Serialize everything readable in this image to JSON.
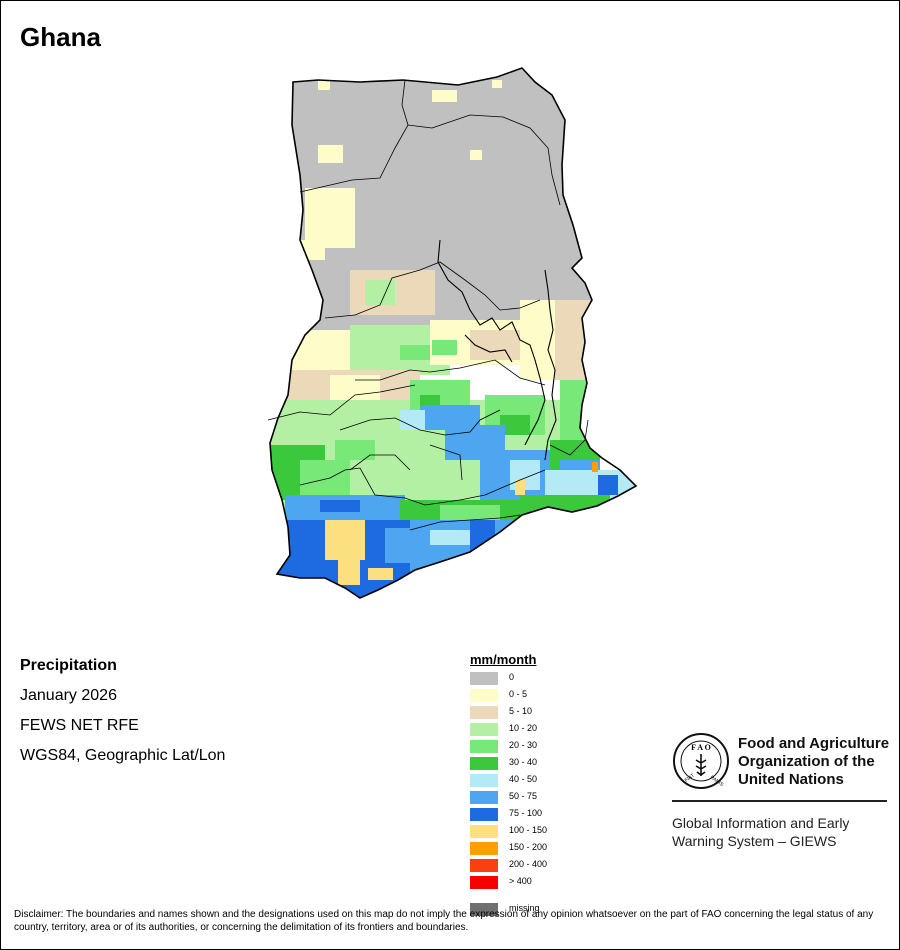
{
  "map": {
    "country": "Ghana"
  },
  "info": {
    "variable": "Precipitation",
    "period": "January 2026",
    "source": "FEWS NET RFE",
    "projection": "WGS84, Geographic Lat/Lon"
  },
  "legend": {
    "unit": "mm/month",
    "classes": [
      {
        "label": "0",
        "color": "#c0c0c0"
      },
      {
        "label": "0 - 5",
        "color": "#fefcc8"
      },
      {
        "label": "5 - 10",
        "color": "#ecd9b9"
      },
      {
        "label": "10 - 20",
        "color": "#b4f0a4"
      },
      {
        "label": "20 - 30",
        "color": "#78e878"
      },
      {
        "label": "30 - 40",
        "color": "#3cc83c"
      },
      {
        "label": "40 - 50",
        "color": "#b4eaf5"
      },
      {
        "label": "50 - 75",
        "color": "#4ea6f0"
      },
      {
        "label": "75 - 100",
        "color": "#1e6ae0"
      },
      {
        "label": "100 - 150",
        "color": "#fce080"
      },
      {
        "label": "150 - 200",
        "color": "#fba000"
      },
      {
        "label": "200 - 400",
        "color": "#f84010"
      },
      {
        "label": "> 400",
        "color": "#f80000"
      },
      {
        "label": "missing",
        "color": "#707070"
      }
    ]
  },
  "branding": {
    "org_line1": "Food and Agriculture",
    "org_line2": "Organization of the",
    "org_line3": "United Nations",
    "system_line1": "Global Information and Early",
    "system_line2": "Warning System – GIEWS",
    "logo_text": "FAO FIAT PANIS"
  },
  "disclaimer": "Disclaimer: The boundaries and names shown and the designations used on this map do not imply the expression of any opinion whatsoever on the part of FAO concerning the legal status of any country, territory, area or of its authorities, or concerning the delimitation of its frontiers and boundaries."
}
